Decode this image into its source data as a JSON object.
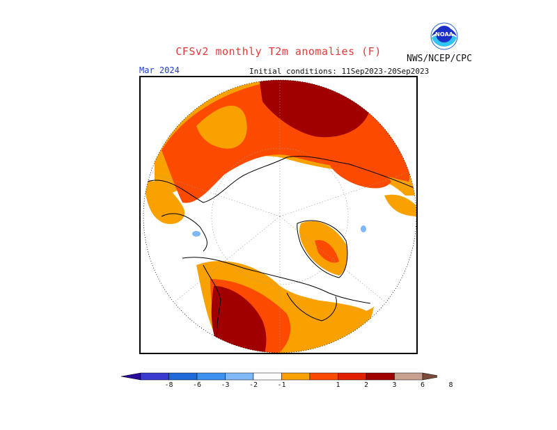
{
  "header": {
    "title": "CFSv2 monthly T2m anomalies (F)",
    "agency": "NWS/NCEP/CPC",
    "valid_month": "Mar 2024",
    "initial_conditions": "Initial conditions: 11Sep2023-20Sep2023"
  },
  "logo": {
    "icon": "noaa-logo-icon",
    "text": "NOAA"
  },
  "colors": {
    "cat_1_2": "#f9a100",
    "cat_2_3": "#fc4a00",
    "cat_3_6": "#a00000",
    "cat_neg_1_2": "#7fb7f7",
    "cat_neg_2_3": "#4a8ae8",
    "coast": "#000000",
    "grid": "#9a9a9a"
  },
  "legend": {
    "colors": [
      "#2a0a9a",
      "#3a3ad0",
      "#1f6ad8",
      "#3d91f0",
      "#7fb7f7",
      "#ffffff",
      "#f9a100",
      "#fc4a00",
      "#e02000",
      "#a00000",
      "#c8a090",
      "#7a4a3a"
    ],
    "labels": [
      "-8",
      "-6",
      "-3",
      "-2",
      "-1",
      "1",
      "2",
      "3",
      "6",
      "8"
    ]
  }
}
